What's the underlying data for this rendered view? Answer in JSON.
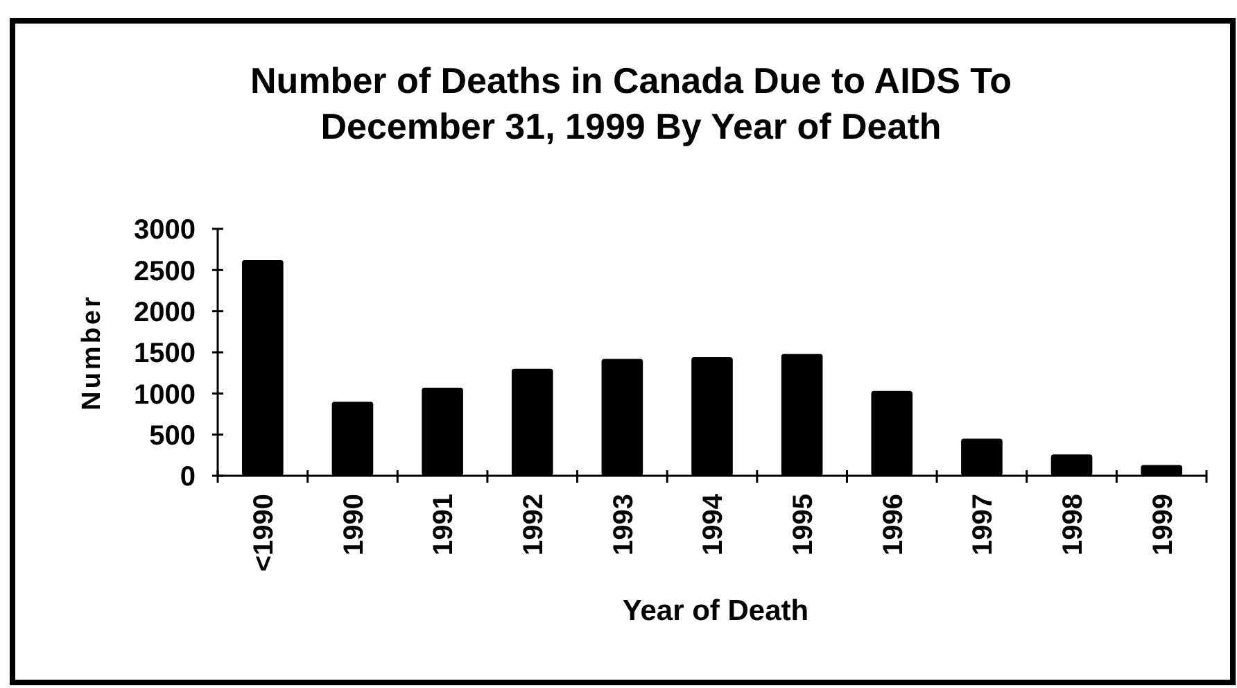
{
  "chart_data": {
    "type": "bar",
    "title": "Number of Deaths in Canada Due to AIDS To\nDecember 31, 1999 By Year of Death",
    "xlabel": "Year of Death",
    "ylabel": "Number",
    "categories": [
      "<1990",
      "1990",
      "1991",
      "1992",
      "1993",
      "1994",
      "1995",
      "1996",
      "1997",
      "1998",
      "1999"
    ],
    "values": [
      2620,
      900,
      1070,
      1300,
      1420,
      1440,
      1480,
      1030,
      450,
      260,
      130
    ],
    "color": "#000000",
    "ylim": [
      0,
      3000
    ],
    "yticks": [
      0,
      500,
      1000,
      1500,
      2000,
      2500,
      3000
    ]
  }
}
